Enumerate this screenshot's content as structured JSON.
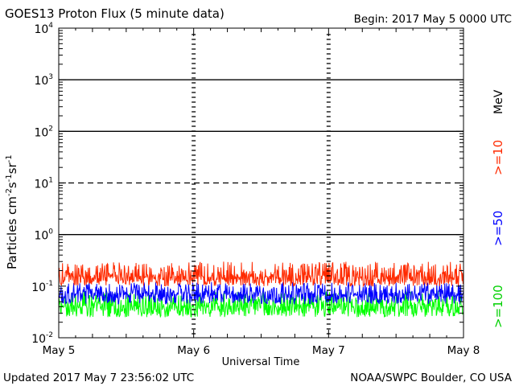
{
  "chart_data": {
    "type": "line",
    "title": "GOES13 Proton Flux (5 minute data)",
    "begin_label": "Begin: 2017 May 5 0000 UTC",
    "xlabel": "Universal Time",
    "ylabel": {
      "base": "Particles cm",
      "sup1": "-2",
      "mid1": "s",
      "sup2": "-1",
      "mid2": "sr",
      "sup3": "-1"
    },
    "x_ticks": [
      "May 5",
      "May 6",
      "May 7",
      "May 8"
    ],
    "xlim_days": [
      0,
      3
    ],
    "y_scale": "log",
    "ylim": [
      0.01,
      10000
    ],
    "y_ticks": [
      {
        "base": "10",
        "exp": "-2"
      },
      {
        "base": "10",
        "exp": "-1"
      },
      {
        "base": "10",
        "exp": "0"
      },
      {
        "base": "10",
        "exp": "1"
      },
      {
        "base": "10",
        "exp": "2"
      },
      {
        "base": "10",
        "exp": "3"
      },
      {
        "base": "10",
        "exp": "4"
      }
    ],
    "threshold_lines": [
      {
        "value": 1000,
        "style": "solid"
      },
      {
        "value": 100,
        "style": "solid"
      },
      {
        "value": 10,
        "style": "dashed"
      },
      {
        "value": 1,
        "style": "solid"
      }
    ],
    "legend": {
      "unit": "MeV",
      "placement": "right"
    },
    "series": [
      {
        "name": ">=10",
        "color": "#ff2a00",
        "typical": 0.15,
        "range": [
          0.1,
          0.3
        ]
      },
      {
        "name": ">=50",
        "color": "#0000ff",
        "typical": 0.07,
        "range": [
          0.045,
          0.12
        ]
      },
      {
        "name": ">=100",
        "color": "#00ff00",
        "typical": 0.04,
        "range": [
          0.025,
          0.08
        ]
      }
    ]
  },
  "footer": {
    "updated": "Updated 2017 May  7 23:56:02 UTC",
    "credit": "NOAA/SWPC Boulder, CO USA"
  }
}
